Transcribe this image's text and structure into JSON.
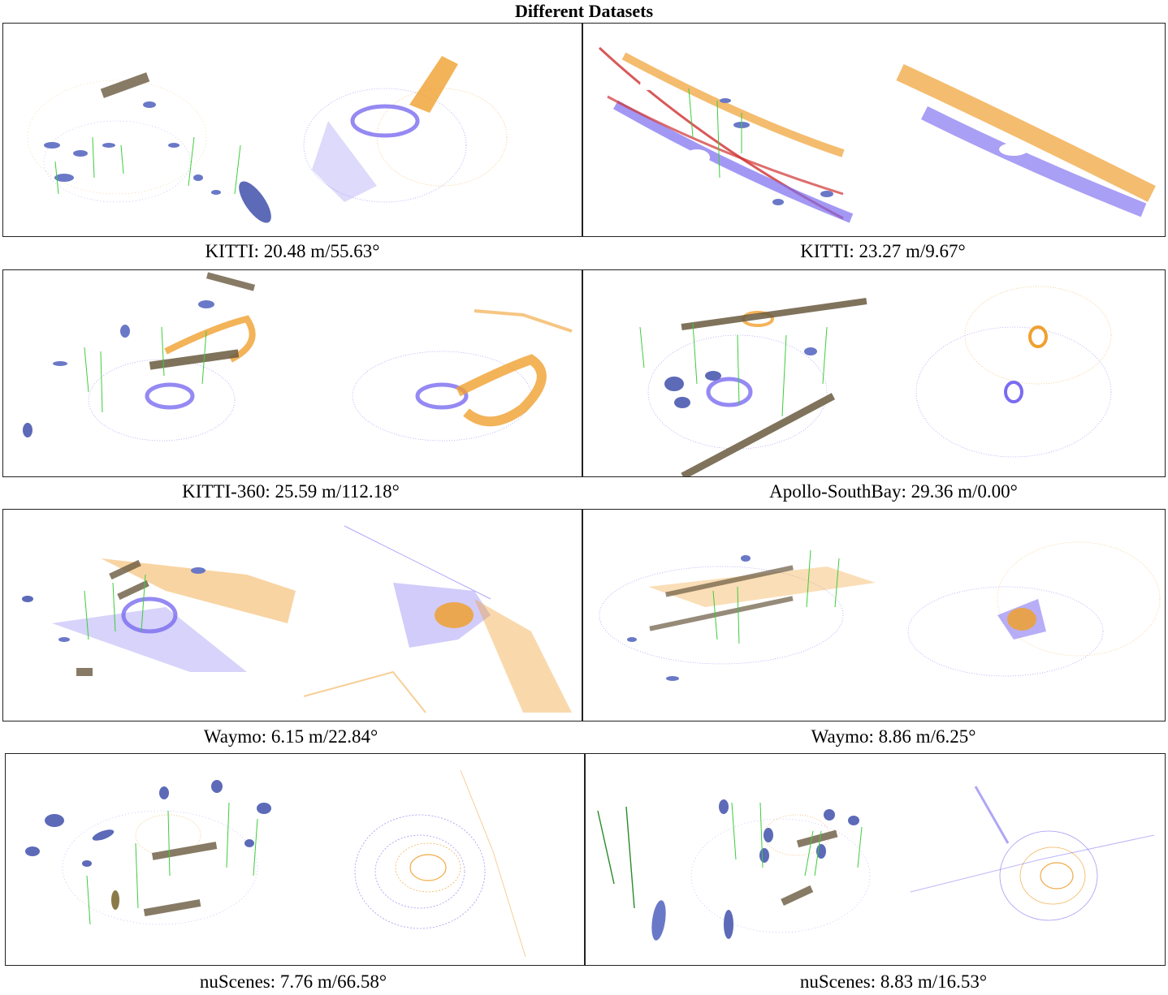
{
  "figure": {
    "title": "Different Datasets",
    "panels": [
      {
        "caption": "KITTI: 20.48 m/55.63°"
      },
      {
        "caption": "KITTI: 23.27 m/9.67°"
      },
      {
        "caption": "KITTI-360: 25.59 m/112.18°"
      },
      {
        "caption": "Apollo-SouthBay: 29.36 m/0.00°"
      },
      {
        "caption": "Waymo: 6.15 m/22.84°"
      },
      {
        "caption": "Waymo: 8.86 m/6.25°"
      },
      {
        "caption": "nuScenes: 7.76 m/66.58°"
      },
      {
        "caption": "nuScenes: 8.83 m/16.53°"
      }
    ]
  },
  "colors": {
    "source_points": "#7b6cf0",
    "target_points": "#f0a030",
    "gaussian": "#6a78c8",
    "correspondence": "#3ccd3c",
    "plane": "#6a5a40",
    "border": "#222222"
  }
}
